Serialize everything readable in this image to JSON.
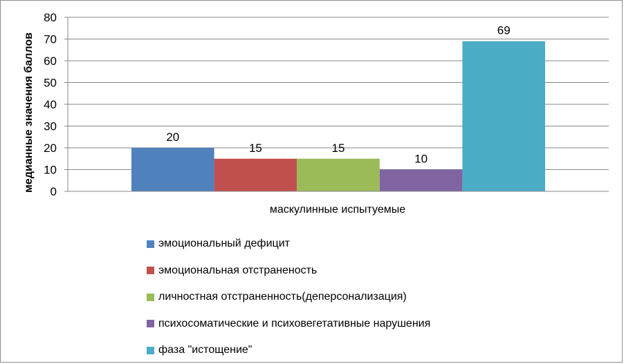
{
  "chart_data": {
    "type": "bar",
    "categories": [
      "маскулинные испытуемые"
    ],
    "series": [
      {
        "name": "эмоциональный дефицит",
        "values": [
          20
        ],
        "color": "#4F81BD"
      },
      {
        "name": "эмоциональная отстраненость",
        "values": [
          15
        ],
        "color": "#C0504D"
      },
      {
        "name": "личностная отстраненность(деперсонализация)",
        "values": [
          15
        ],
        "color": "#9BBB59"
      },
      {
        "name": "психосоматические и психовегетативные нарушения",
        "values": [
          10
        ],
        "color": "#8064A2"
      },
      {
        "name": "фаза \"истощение\"",
        "values": [
          69
        ],
        "color": "#4BACC6"
      }
    ],
    "ylabel": "медианные значения баллов",
    "ylim": [
      0,
      80
    ],
    "yticks": [
      0,
      10,
      20,
      30,
      40,
      50,
      60,
      70,
      80
    ],
    "grid": true,
    "legend_position": "bottom",
    "data_labels": true
  }
}
